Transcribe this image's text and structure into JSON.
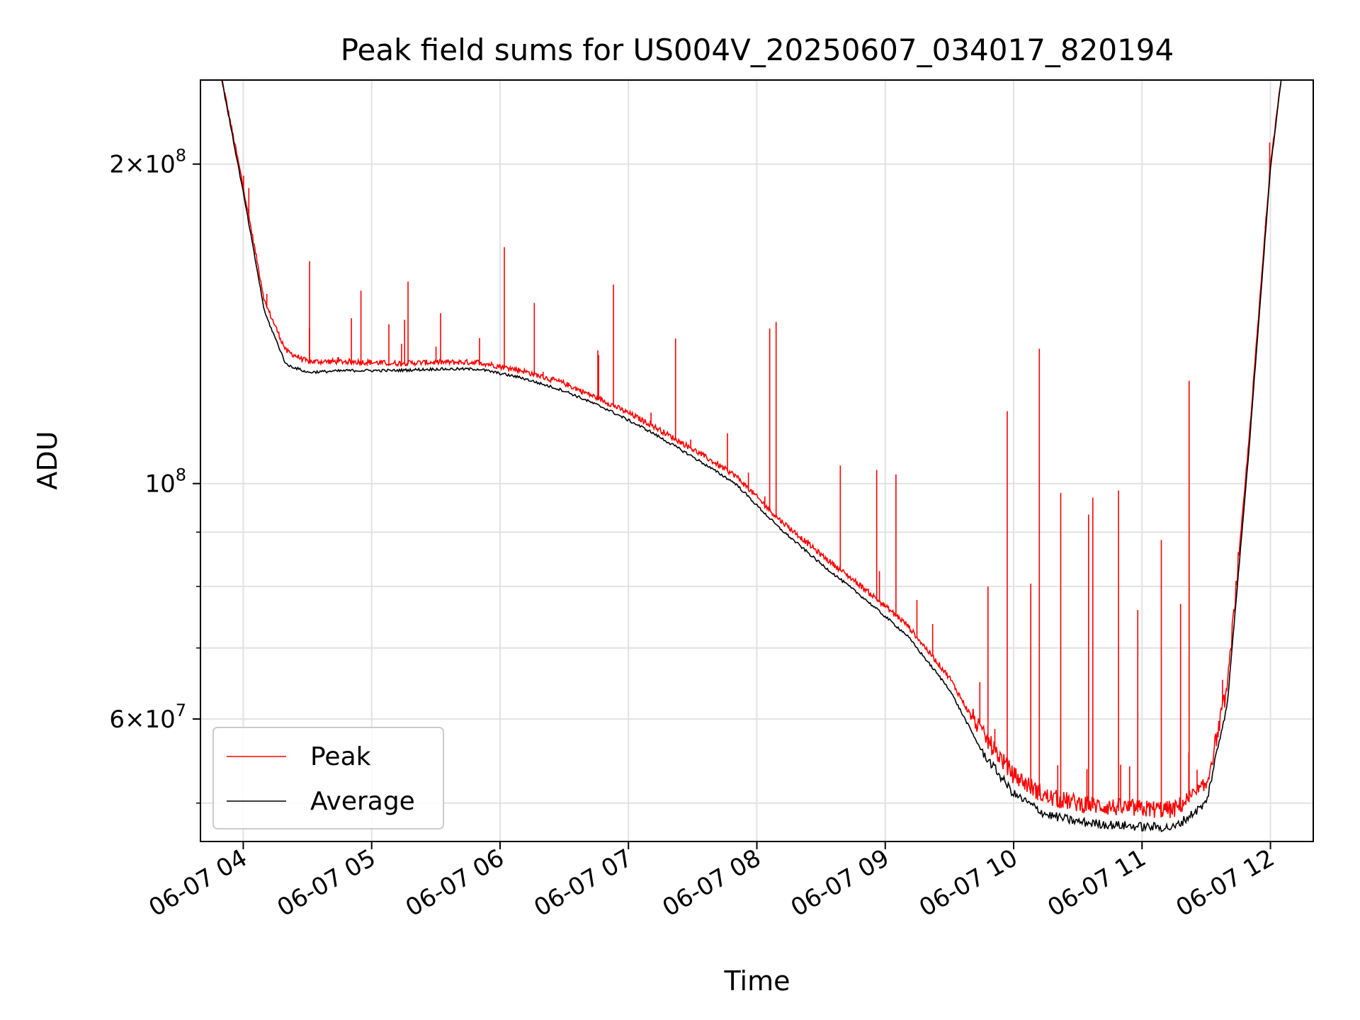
{
  "chart_data": {
    "type": "line",
    "title": "Peak field sums for US004V_20250607_034017_820194",
    "xlabel": "Time",
    "ylabel": "ADU",
    "x_ticks": [
      "06-07 04",
      "06-07 05",
      "06-07 06",
      "06-07 07",
      "06-07 08",
      "06-07 09",
      "06-07 10",
      "06-07 11",
      "06-07 12"
    ],
    "y_ticks": [
      {
        "value": 200000000,
        "mantissa": "2",
        "exponent": "8"
      },
      {
        "value": 100000000,
        "mantissa": "",
        "exponent": "8"
      },
      {
        "value": 60000000,
        "mantissa": "6",
        "exponent": "7"
      }
    ],
    "y_scale": "log",
    "ylim": [
      46000000,
      240000000
    ],
    "xlim": [
      "2025-06-07 03:40",
      "2025-06-07 12:20"
    ],
    "grid": true,
    "legend_position": "lower-left",
    "series": [
      {
        "name": "Peak",
        "color": "#ff0000",
        "x": [
          "2025-06-07 03:50",
          "2025-06-07 04:00",
          "2025-06-07 04:10",
          "2025-06-07 04:20",
          "2025-06-07 04:30",
          "2025-06-07 04:50",
          "2025-06-07 05:10",
          "2025-06-07 05:30",
          "2025-06-07 05:50",
          "2025-06-07 06:10",
          "2025-06-07 06:30",
          "2025-06-07 06:50",
          "2025-06-07 07:10",
          "2025-06-07 07:30",
          "2025-06-07 07:50",
          "2025-06-07 08:10",
          "2025-06-07 08:30",
          "2025-06-07 08:50",
          "2025-06-07 09:10",
          "2025-06-07 09:30",
          "2025-06-07 09:45",
          "2025-06-07 10:00",
          "2025-06-07 10:15",
          "2025-06-07 10:30",
          "2025-06-07 10:45",
          "2025-06-07 11:00",
          "2025-06-07 11:15",
          "2025-06-07 11:30",
          "2025-06-07 11:40",
          "2025-06-07 11:50",
          "2025-06-07 12:00",
          "2025-06-07 12:05"
        ],
        "y": [
          240000000,
          190000000,
          148000000,
          133000000,
          130000000,
          130000000,
          129500000,
          129800000,
          129800000,
          127500000,
          124000000,
          119000000,
          113500000,
          107500000,
          101500000,
          92500000,
          85500000,
          79500000,
          73500000,
          65500000,
          57800000,
          52700000,
          50300000,
          49600000,
          49200000,
          49000000,
          48900000,
          51500000,
          64000000,
          110000000,
          200000000,
          240000000
        ]
      },
      {
        "name": "Average",
        "color": "#000000",
        "x": [
          "2025-06-07 03:50",
          "2025-06-07 04:00",
          "2025-06-07 04:10",
          "2025-06-07 04:20",
          "2025-06-07 04:30",
          "2025-06-07 04:50",
          "2025-06-07 05:10",
          "2025-06-07 05:30",
          "2025-06-07 05:50",
          "2025-06-07 06:10",
          "2025-06-07 06:30",
          "2025-06-07 06:50",
          "2025-06-07 07:10",
          "2025-06-07 07:30",
          "2025-06-07 07:50",
          "2025-06-07 08:10",
          "2025-06-07 08:30",
          "2025-06-07 08:50",
          "2025-06-07 09:10",
          "2025-06-07 09:30",
          "2025-06-07 09:45",
          "2025-06-07 10:00",
          "2025-06-07 10:15",
          "2025-06-07 10:30",
          "2025-06-07 10:45",
          "2025-06-07 11:00",
          "2025-06-07 11:15",
          "2025-06-07 11:30",
          "2025-06-07 11:40",
          "2025-06-07 11:50",
          "2025-06-07 12:00",
          "2025-06-07 12:05"
        ],
        "y": [
          240000000,
          188000000,
          145000000,
          129500000,
          127300000,
          127800000,
          127800000,
          128200000,
          128200000,
          125800000,
          122300000,
          117500000,
          112000000,
          106000000,
          100000000,
          91000000,
          84000000,
          78000000,
          72000000,
          64000000,
          56000000,
          51000000,
          48800000,
          48000000,
          47700000,
          47500000,
          47400000,
          50000000,
          62500000,
          108000000,
          198000000,
          240000000
        ]
      }
    ],
    "peak_spikes": [
      {
        "t": "2025-06-07 04:31",
        "value": 162000000
      },
      {
        "t": "2025-06-07 04:55",
        "value": 152000000
      },
      {
        "t": "2025-06-07 05:17",
        "value": 155000000
      },
      {
        "t": "2025-06-07 06:02",
        "value": 167000000
      },
      {
        "t": "2025-06-07 06:16",
        "value": 148000000
      },
      {
        "t": "2025-06-07 06:53",
        "value": 154000000
      },
      {
        "t": "2025-06-07 07:22",
        "value": 137000000
      },
      {
        "t": "2025-06-07 08:06",
        "value": 140000000
      },
      {
        "t": "2025-06-07 08:09",
        "value": 142000000
      },
      {
        "t": "2025-06-07 08:39",
        "value": 104000000
      },
      {
        "t": "2025-06-07 08:56",
        "value": 103000000
      },
      {
        "t": "2025-06-07 09:05",
        "value": 102000000
      },
      {
        "t": "2025-06-07 09:48",
        "value": 80000000
      },
      {
        "t": "2025-06-07 09:57",
        "value": 117000000
      },
      {
        "t": "2025-06-07 10:08",
        "value": 80500000
      },
      {
        "t": "2025-06-07 10:12",
        "value": 134000000
      },
      {
        "t": "2025-06-07 10:22",
        "value": 98000000
      },
      {
        "t": "2025-06-07 10:35",
        "value": 93500000
      },
      {
        "t": "2025-06-07 10:37",
        "value": 97000000
      },
      {
        "t": "2025-06-07 10:49",
        "value": 98500000
      },
      {
        "t": "2025-06-07 10:58",
        "value": 76000000
      },
      {
        "t": "2025-06-07 11:09",
        "value": 88500000
      },
      {
        "t": "2025-06-07 11:18",
        "value": 77000000
      },
      {
        "t": "2025-06-07 11:22",
        "value": 125000000
      }
    ]
  }
}
